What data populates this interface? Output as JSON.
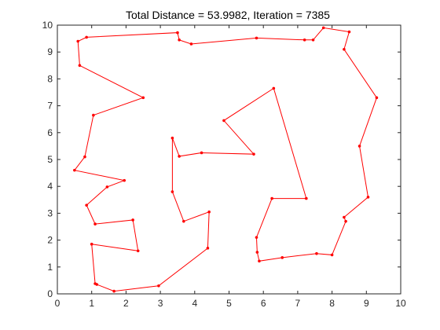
{
  "chart_data": {
    "type": "line",
    "title": "Total Distance = 53.9982, Iteration = 7385",
    "xlabel": "",
    "ylabel": "",
    "xlim": [
      0,
      10
    ],
    "ylim": [
      0,
      10
    ],
    "xticks": [
      0,
      1,
      2,
      3,
      4,
      5,
      6,
      7,
      8,
      9,
      10
    ],
    "yticks": [
      0,
      1,
      2,
      3,
      4,
      5,
      6,
      7,
      8,
      9,
      10
    ],
    "grid": false,
    "line_color": "#ff0000",
    "marker": "dot",
    "series": [
      {
        "x": [
          6.3,
          4.85,
          5.72,
          4.2,
          3.55,
          3.35,
          3.35,
          3.68,
          4.42,
          4.38,
          2.95,
          1.65,
          1.15,
          1.1,
          1.0,
          2.35,
          2.2,
          1.1,
          0.85,
          1.45,
          1.95,
          0.5,
          0.8,
          1.05,
          2.5,
          0.65,
          0.6,
          0.85,
          3.5,
          3.55,
          3.9,
          5.8,
          7.2,
          7.45,
          7.75,
          8.5,
          8.35,
          9.3,
          8.8,
          9.05,
          8.35,
          8.4,
          8.0,
          7.55,
          6.55,
          5.88,
          5.82,
          5.8,
          6.25,
          7.25
        ],
        "y": [
          7.65,
          6.45,
          5.2,
          5.25,
          5.12,
          5.8,
          3.8,
          2.7,
          3.05,
          1.7,
          0.3,
          0.1,
          0.35,
          0.38,
          1.85,
          1.6,
          2.75,
          2.6,
          3.3,
          3.98,
          4.22,
          4.6,
          5.1,
          6.65,
          7.3,
          8.5,
          9.4,
          9.55,
          9.72,
          9.45,
          9.3,
          9.52,
          9.45,
          9.45,
          9.9,
          9.75,
          9.1,
          7.3,
          5.5,
          3.6,
          2.85,
          2.7,
          1.45,
          1.5,
          1.35,
          1.22,
          1.55,
          2.1,
          3.55,
          3.55
        ]
      }
    ]
  }
}
